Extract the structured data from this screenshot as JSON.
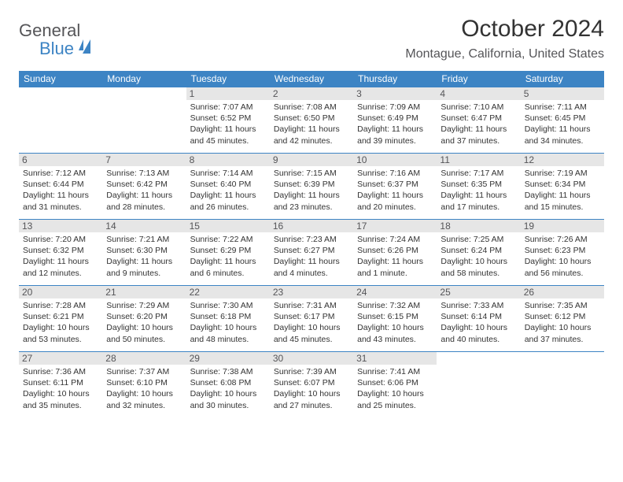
{
  "logo": {
    "word1": "General",
    "word2": "Blue"
  },
  "header": {
    "month_title": "October 2024",
    "location": "Montague, California, United States"
  },
  "calendar": {
    "type": "table",
    "header_bg": "#3d84c4",
    "header_fg": "#ffffff",
    "daynum_bg": "#e6e6e6",
    "row_border": "#3d84c4",
    "day_headers": [
      "Sunday",
      "Monday",
      "Tuesday",
      "Wednesday",
      "Thursday",
      "Friday",
      "Saturday"
    ],
    "weeks": [
      [
        {
          "n": "",
          "sr": "",
          "ss": "",
          "dl": ""
        },
        {
          "n": "",
          "sr": "",
          "ss": "",
          "dl": ""
        },
        {
          "n": "1",
          "sr": "Sunrise: 7:07 AM",
          "ss": "Sunset: 6:52 PM",
          "dl": "Daylight: 11 hours and 45 minutes."
        },
        {
          "n": "2",
          "sr": "Sunrise: 7:08 AM",
          "ss": "Sunset: 6:50 PM",
          "dl": "Daylight: 11 hours and 42 minutes."
        },
        {
          "n": "3",
          "sr": "Sunrise: 7:09 AM",
          "ss": "Sunset: 6:49 PM",
          "dl": "Daylight: 11 hours and 39 minutes."
        },
        {
          "n": "4",
          "sr": "Sunrise: 7:10 AM",
          "ss": "Sunset: 6:47 PM",
          "dl": "Daylight: 11 hours and 37 minutes."
        },
        {
          "n": "5",
          "sr": "Sunrise: 7:11 AM",
          "ss": "Sunset: 6:45 PM",
          "dl": "Daylight: 11 hours and 34 minutes."
        }
      ],
      [
        {
          "n": "6",
          "sr": "Sunrise: 7:12 AM",
          "ss": "Sunset: 6:44 PM",
          "dl": "Daylight: 11 hours and 31 minutes."
        },
        {
          "n": "7",
          "sr": "Sunrise: 7:13 AM",
          "ss": "Sunset: 6:42 PM",
          "dl": "Daylight: 11 hours and 28 minutes."
        },
        {
          "n": "8",
          "sr": "Sunrise: 7:14 AM",
          "ss": "Sunset: 6:40 PM",
          "dl": "Daylight: 11 hours and 26 minutes."
        },
        {
          "n": "9",
          "sr": "Sunrise: 7:15 AM",
          "ss": "Sunset: 6:39 PM",
          "dl": "Daylight: 11 hours and 23 minutes."
        },
        {
          "n": "10",
          "sr": "Sunrise: 7:16 AM",
          "ss": "Sunset: 6:37 PM",
          "dl": "Daylight: 11 hours and 20 minutes."
        },
        {
          "n": "11",
          "sr": "Sunrise: 7:17 AM",
          "ss": "Sunset: 6:35 PM",
          "dl": "Daylight: 11 hours and 17 minutes."
        },
        {
          "n": "12",
          "sr": "Sunrise: 7:19 AM",
          "ss": "Sunset: 6:34 PM",
          "dl": "Daylight: 11 hours and 15 minutes."
        }
      ],
      [
        {
          "n": "13",
          "sr": "Sunrise: 7:20 AM",
          "ss": "Sunset: 6:32 PM",
          "dl": "Daylight: 11 hours and 12 minutes."
        },
        {
          "n": "14",
          "sr": "Sunrise: 7:21 AM",
          "ss": "Sunset: 6:30 PM",
          "dl": "Daylight: 11 hours and 9 minutes."
        },
        {
          "n": "15",
          "sr": "Sunrise: 7:22 AM",
          "ss": "Sunset: 6:29 PM",
          "dl": "Daylight: 11 hours and 6 minutes."
        },
        {
          "n": "16",
          "sr": "Sunrise: 7:23 AM",
          "ss": "Sunset: 6:27 PM",
          "dl": "Daylight: 11 hours and 4 minutes."
        },
        {
          "n": "17",
          "sr": "Sunrise: 7:24 AM",
          "ss": "Sunset: 6:26 PM",
          "dl": "Daylight: 11 hours and 1 minute."
        },
        {
          "n": "18",
          "sr": "Sunrise: 7:25 AM",
          "ss": "Sunset: 6:24 PM",
          "dl": "Daylight: 10 hours and 58 minutes."
        },
        {
          "n": "19",
          "sr": "Sunrise: 7:26 AM",
          "ss": "Sunset: 6:23 PM",
          "dl": "Daylight: 10 hours and 56 minutes."
        }
      ],
      [
        {
          "n": "20",
          "sr": "Sunrise: 7:28 AM",
          "ss": "Sunset: 6:21 PM",
          "dl": "Daylight: 10 hours and 53 minutes."
        },
        {
          "n": "21",
          "sr": "Sunrise: 7:29 AM",
          "ss": "Sunset: 6:20 PM",
          "dl": "Daylight: 10 hours and 50 minutes."
        },
        {
          "n": "22",
          "sr": "Sunrise: 7:30 AM",
          "ss": "Sunset: 6:18 PM",
          "dl": "Daylight: 10 hours and 48 minutes."
        },
        {
          "n": "23",
          "sr": "Sunrise: 7:31 AM",
          "ss": "Sunset: 6:17 PM",
          "dl": "Daylight: 10 hours and 45 minutes."
        },
        {
          "n": "24",
          "sr": "Sunrise: 7:32 AM",
          "ss": "Sunset: 6:15 PM",
          "dl": "Daylight: 10 hours and 43 minutes."
        },
        {
          "n": "25",
          "sr": "Sunrise: 7:33 AM",
          "ss": "Sunset: 6:14 PM",
          "dl": "Daylight: 10 hours and 40 minutes."
        },
        {
          "n": "26",
          "sr": "Sunrise: 7:35 AM",
          "ss": "Sunset: 6:12 PM",
          "dl": "Daylight: 10 hours and 37 minutes."
        }
      ],
      [
        {
          "n": "27",
          "sr": "Sunrise: 7:36 AM",
          "ss": "Sunset: 6:11 PM",
          "dl": "Daylight: 10 hours and 35 minutes."
        },
        {
          "n": "28",
          "sr": "Sunrise: 7:37 AM",
          "ss": "Sunset: 6:10 PM",
          "dl": "Daylight: 10 hours and 32 minutes."
        },
        {
          "n": "29",
          "sr": "Sunrise: 7:38 AM",
          "ss": "Sunset: 6:08 PM",
          "dl": "Daylight: 10 hours and 30 minutes."
        },
        {
          "n": "30",
          "sr": "Sunrise: 7:39 AM",
          "ss": "Sunset: 6:07 PM",
          "dl": "Daylight: 10 hours and 27 minutes."
        },
        {
          "n": "31",
          "sr": "Sunrise: 7:41 AM",
          "ss": "Sunset: 6:06 PM",
          "dl": "Daylight: 10 hours and 25 minutes."
        },
        {
          "n": "",
          "sr": "",
          "ss": "",
          "dl": ""
        },
        {
          "n": "",
          "sr": "",
          "ss": "",
          "dl": ""
        }
      ]
    ]
  }
}
